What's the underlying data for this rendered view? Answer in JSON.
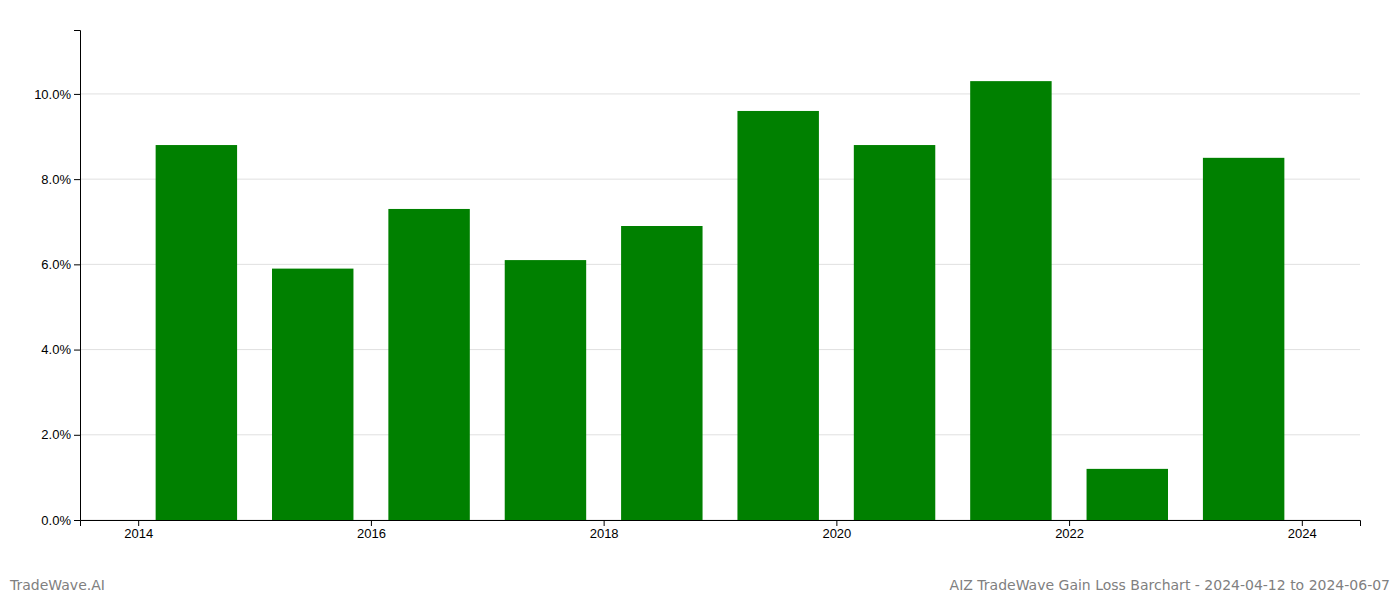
{
  "chart_data": {
    "type": "bar",
    "title": "AIZ TradeWave Gain Loss Barchart - 2024-04-12 to 2024-06-07",
    "annotations": [
      "TradeWave.AI"
    ],
    "x": [
      2014,
      2015,
      2016,
      2017,
      2018,
      2019,
      2020,
      2021,
      2022,
      2023
    ],
    "values": [
      0.088,
      0.059,
      0.073,
      0.061,
      0.069,
      0.096,
      0.088,
      0.103,
      0.012,
      0.085
    ],
    "color": "#008000",
    "xlim": [
      2013,
      2024
    ],
    "xticks": [
      {
        "value": 2013.5,
        "label": "2014"
      },
      {
        "value": 2015.5,
        "label": "2016"
      },
      {
        "value": 2017.5,
        "label": "2018"
      },
      {
        "value": 2019.5,
        "label": "2020"
      },
      {
        "value": 2021.5,
        "label": "2022"
      },
      {
        "value": 2023.5,
        "label": "2024"
      }
    ],
    "ylim": [
      0,
      0.115
    ],
    "yticks": [
      {
        "value": 0.0,
        "label": "0.0%"
      },
      {
        "value": 0.02,
        "label": "2.0%"
      },
      {
        "value": 0.04,
        "label": "4.0%"
      },
      {
        "value": 0.06,
        "label": "6.0%"
      },
      {
        "value": 0.08,
        "label": "8.0%"
      },
      {
        "value": 0.1,
        "label": "10.0%"
      }
    ],
    "grid": true
  }
}
